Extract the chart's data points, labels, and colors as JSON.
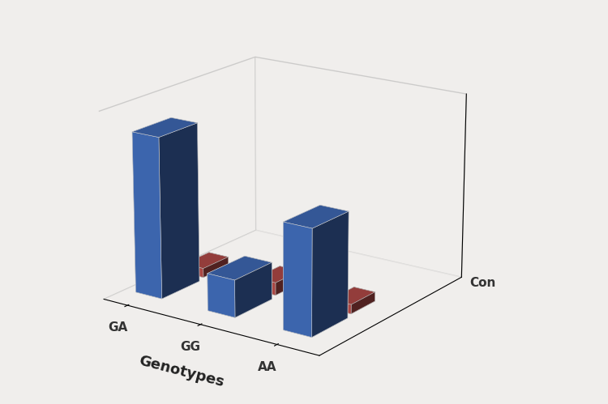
{
  "genotypes": [
    "GA",
    "GG",
    "AA"
  ],
  "cases_values": [
    9.5,
    2.2,
    6.2
  ],
  "controls_values": [
    0.55,
    0.75,
    0.55
  ],
  "cases_color": "#4472C4",
  "cases_side_color": "#2E5A9C",
  "controls_color": "#C0504D",
  "controls_side_color": "#943330",
  "xlabel": "Genotypes",
  "con_label": "Con",
  "background_color": "#F0EEEC",
  "bar_width": 0.55,
  "bar_depth_cases": 0.55,
  "bar_depth_controls": 0.38,
  "x_positions": [
    0,
    1.5,
    3.0
  ],
  "ypos_cases": 0.0,
  "ypos_controls": 0.65,
  "xlabel_fontsize": 13,
  "tick_fontsize": 11,
  "con_fontsize": 11
}
